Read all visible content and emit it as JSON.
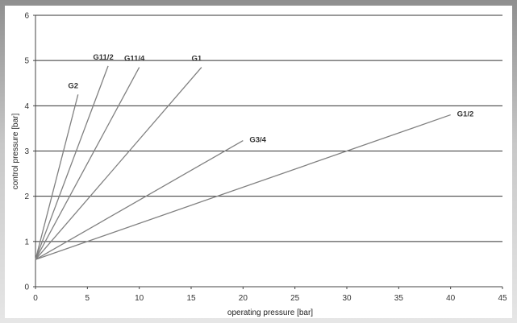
{
  "chart_data": {
    "type": "line",
    "title": "",
    "xlabel": "operating pressure [bar]",
    "ylabel": "control pressure [bar]",
    "xlim": [
      0,
      45
    ],
    "ylim": [
      0,
      6
    ],
    "xticks": [
      0,
      5,
      10,
      15,
      20,
      25,
      30,
      35,
      40,
      45
    ],
    "yticks": [
      0,
      1,
      2,
      3,
      4,
      5,
      6
    ],
    "grid": "horizontal",
    "series": [
      {
        "name": "G2",
        "x": [
          0,
          4.1
        ],
        "y": [
          0.6,
          4.25
        ],
        "label_anchor": "end-above-left"
      },
      {
        "name": "G11/2",
        "x": [
          0,
          7.0
        ],
        "y": [
          0.6,
          4.88
        ],
        "label_anchor": "end-above-left"
      },
      {
        "name": "G11/4",
        "x": [
          0,
          10.0
        ],
        "y": [
          0.6,
          4.85
        ],
        "label_anchor": "end-above-left"
      },
      {
        "name": "G1",
        "x": [
          0,
          16.0
        ],
        "y": [
          0.6,
          4.85
        ],
        "label_anchor": "end-above-left"
      },
      {
        "name": "G3/4",
        "x": [
          0,
          20.0
        ],
        "y": [
          0.6,
          3.23
        ],
        "label_anchor": "end-right"
      },
      {
        "name": "G1/2",
        "x": [
          0,
          40.0
        ],
        "y": [
          0.6,
          3.8
        ],
        "label_anchor": "end-right"
      }
    ],
    "colors": {
      "line": "#808080",
      "grid": "#333333",
      "frame_gradient_top": "#8f8f8f",
      "frame_gradient_bottom": "#e6e6e6",
      "plot_background": "#ffffff"
    }
  }
}
